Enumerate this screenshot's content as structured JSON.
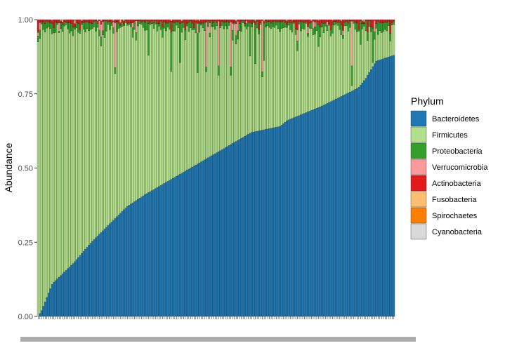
{
  "chart_data": {
    "type": "bar",
    "stacked": true,
    "ylabel": "Abundance",
    "xlabel": "",
    "ylim": [
      0,
      1
    ],
    "yticks": [
      "0.00",
      "0.25",
      "0.50",
      "0.75",
      "1.00"
    ],
    "grid": false,
    "legend": {
      "title": "Phylum",
      "placement": "right",
      "entries": [
        {
          "name": "Bacteroidetes",
          "color": "#1f78b4"
        },
        {
          "name": "Firmicutes",
          "color": "#b2df8a"
        },
        {
          "name": "Proteobacteria",
          "color": "#33a02c"
        },
        {
          "name": "Verrucomicrobia",
          "color": "#fb9a99"
        },
        {
          "name": "Actinobacteria",
          "color": "#e31a1c"
        },
        {
          "name": "Fusobacteria",
          "color": "#fdbf6f"
        },
        {
          "name": "Spirochaetes",
          "color": "#ff7f00"
        },
        {
          "name": "Cyanobacteria",
          "color": "#d9d9d9"
        }
      ]
    },
    "sample_count": 204,
    "bacteroidetes_profile": {
      "description_points_x_fraction": [
        0,
        0.01,
        0.02,
        0.04,
        0.1,
        0.15,
        0.2,
        0.25,
        0.3,
        0.4,
        0.5,
        0.6,
        0.68,
        0.7,
        0.8,
        0.9,
        0.92,
        0.95,
        1.0
      ],
      "values": [
        0.0,
        0.02,
        0.05,
        0.11,
        0.18,
        0.25,
        0.31,
        0.37,
        0.41,
        0.48,
        0.55,
        0.62,
        0.64,
        0.66,
        0.71,
        0.77,
        0.8,
        0.86,
        0.88
      ]
    },
    "firmicutes_approx_top": 0.96
  }
}
